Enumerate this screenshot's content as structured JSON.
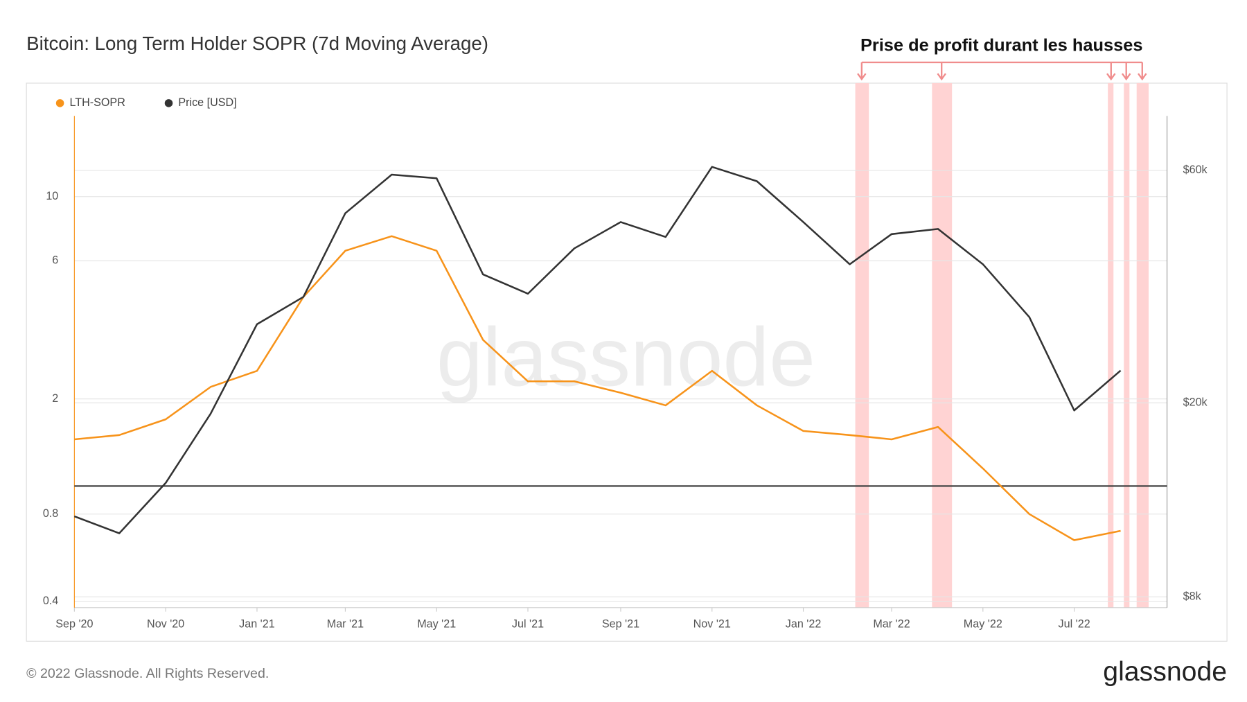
{
  "chart_data": {
    "type": "line",
    "title": "Bitcoin: Long Term Holder SOPR (7d Moving Average)",
    "annotation": "Prise de profit durant les hausses",
    "watermark": "glassnode",
    "footer": "© 2022 Glassnode. All Rights Reserved.",
    "logo": "glassnode",
    "x": [
      "2020-09",
      "2020-10",
      "2020-11",
      "2020-12",
      "2021-01",
      "2021-02",
      "2021-03",
      "2021-04",
      "2021-05",
      "2021-06",
      "2021-07",
      "2021-08",
      "2021-09",
      "2021-10",
      "2021-11",
      "2021-12",
      "2022-01",
      "2022-02",
      "2022-03",
      "2022-04",
      "2022-05",
      "2022-06",
      "2022-07",
      "2022-08"
    ],
    "series": [
      {
        "name": "LTH-SOPR",
        "color": "#f7931a",
        "axis": "y",
        "values": [
          1.45,
          1.5,
          1.7,
          2.2,
          2.5,
          4.5,
          6.5,
          7.3,
          6.5,
          3.2,
          2.3,
          2.3,
          2.1,
          1.9,
          2.5,
          1.9,
          1.55,
          1.5,
          1.45,
          1.6,
          1.15,
          0.8,
          0.65,
          0.7
        ]
      },
      {
        "name": "Price [USD]",
        "color": "#333333",
        "axis": "y2",
        "values": [
          11700,
          10800,
          13700,
          19000,
          29000,
          33000,
          49000,
          58800,
          57800,
          36700,
          33500,
          41500,
          47000,
          43800,
          61000,
          57000,
          47000,
          38500,
          44400,
          45500,
          38500,
          30000,
          19300,
          23300
        ]
      }
    ],
    "xlim": [
      "2020-09",
      "2022-09"
    ],
    "xticks": [
      {
        "value": "2020-09",
        "label": "Sep '20"
      },
      {
        "value": "2020-11",
        "label": "Nov '20"
      },
      {
        "value": "2021-01",
        "label": "Jan '21"
      },
      {
        "value": "2021-03",
        "label": "Mar '21"
      },
      {
        "value": "2021-05",
        "label": "May '21"
      },
      {
        "value": "2021-07",
        "label": "Jul '21"
      },
      {
        "value": "2021-09",
        "label": "Sep '21"
      },
      {
        "value": "2021-11",
        "label": "Nov '21"
      },
      {
        "value": "2022-01",
        "label": "Jan '22"
      },
      {
        "value": "2022-03",
        "label": "Mar '22"
      },
      {
        "value": "2022-05",
        "label": "May '22"
      },
      {
        "value": "2022-07",
        "label": "Jul '22"
      }
    ],
    "ylim": [
      0.38,
      19
    ],
    "ylog": true,
    "yticks": [
      0.4,
      0.8,
      2,
      6,
      10
    ],
    "y2lim": [
      7600,
      77600
    ],
    "y2log": true,
    "y2ticks": [
      {
        "value": 8000,
        "label": "$8k"
      },
      {
        "value": 20000,
        "label": "$20k"
      },
      {
        "value": 60000,
        "label": "$60k"
      }
    ],
    "hline": 1,
    "grid": true,
    "legend": "top-left"
  }
}
